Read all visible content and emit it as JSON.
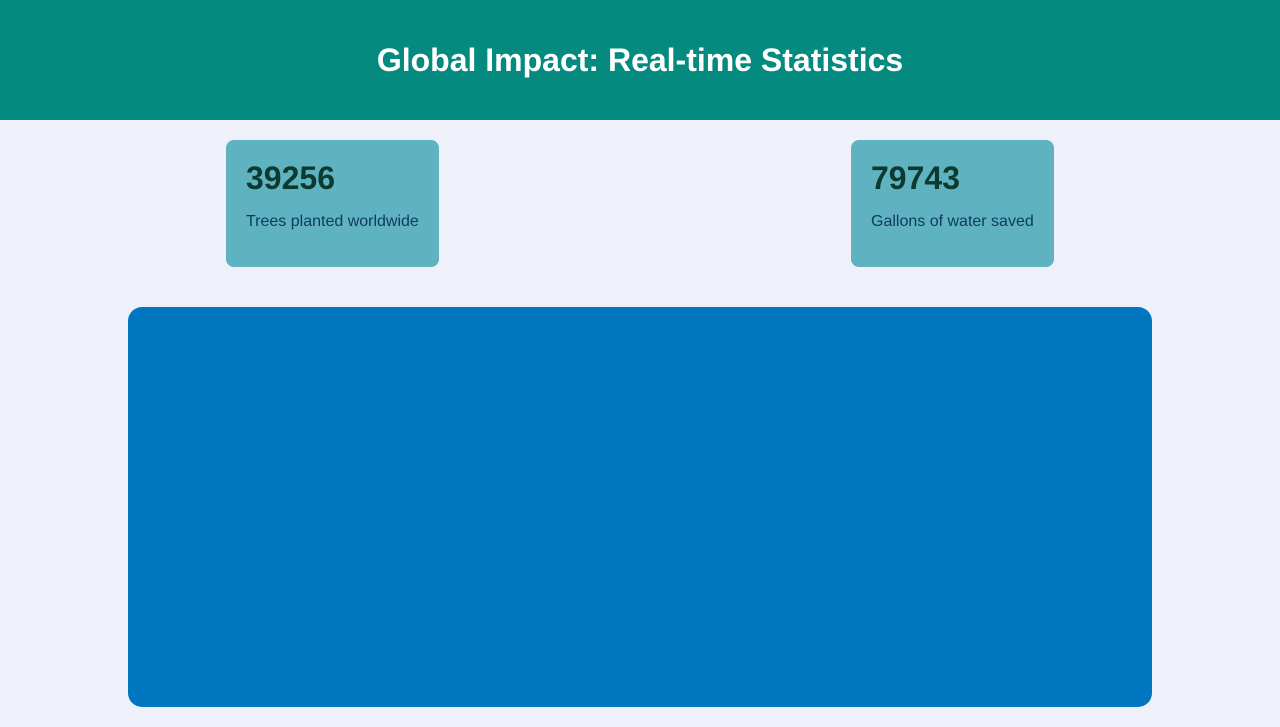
{
  "header": {
    "title": "Global Impact: Real-time Statistics"
  },
  "stats": [
    {
      "value": "39256",
      "label": "Trees planted worldwide"
    },
    {
      "value": "79743",
      "label": "Gallons of water saved"
    }
  ],
  "colors": {
    "header_bg": "#058a80",
    "page_bg": "#eef1fa",
    "card_bg": "#5fb2c0",
    "panel_bg": "#0077c0"
  }
}
